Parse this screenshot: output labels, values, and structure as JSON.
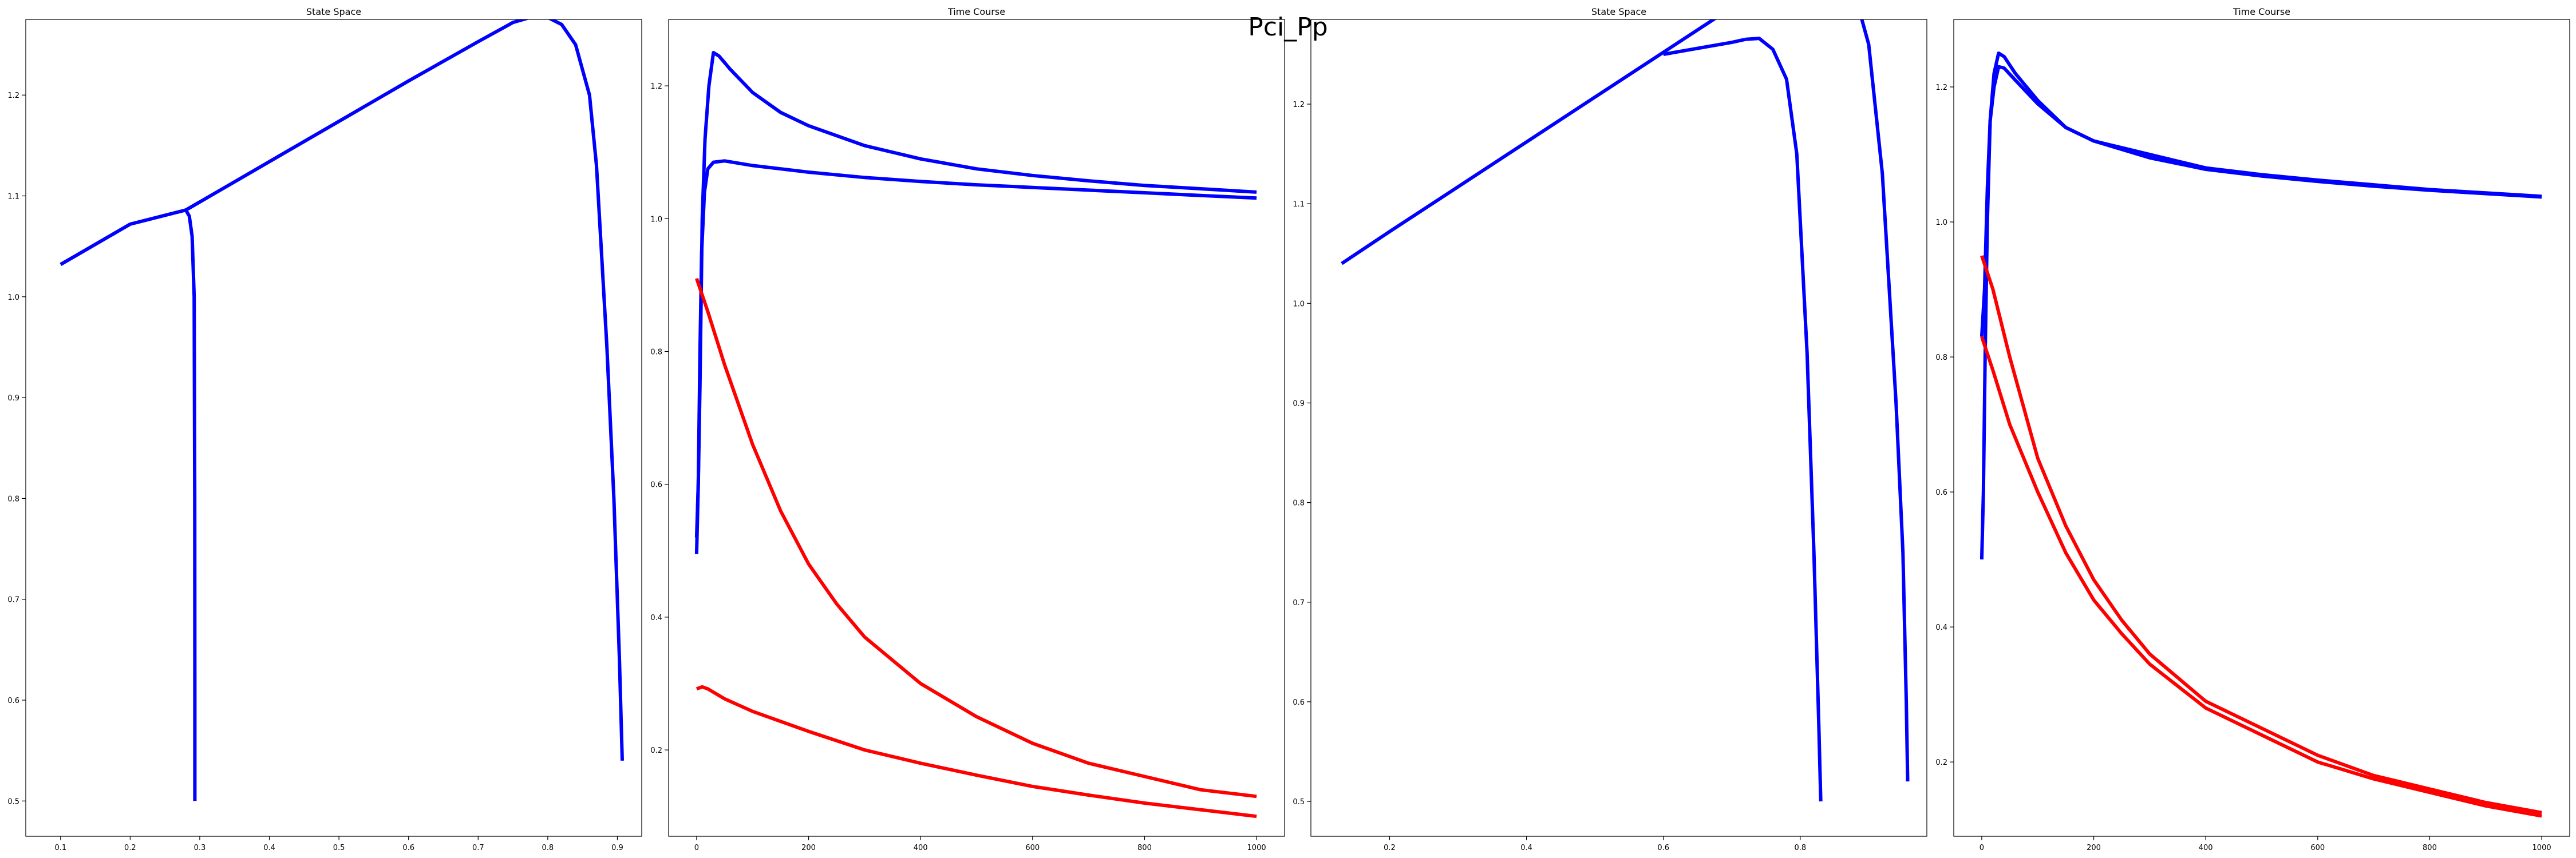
{
  "figure": {
    "suptitle": "Pci_Pp"
  },
  "colors": {
    "blue": "#0000ff",
    "red": "#ff0000",
    "axis": "#000000"
  },
  "chart_data": [
    {
      "type": "line",
      "title": "State Space",
      "xlim": [
        0.05,
        0.935
      ],
      "ylim": [
        0.465,
        1.275
      ],
      "xticks": [
        "0.1",
        "0.2",
        "0.3",
        "0.4",
        "0.5",
        "0.6",
        "0.7",
        "0.8",
        "0.9"
      ],
      "yticks": [
        "0.5",
        "0.6",
        "0.7",
        "0.8",
        "0.9",
        "1.0",
        "1.1",
        "1.2"
      ],
      "series": [
        {
          "color": "blue",
          "points": [
            [
              0.293,
              0.5
            ],
            [
              0.293,
              0.6
            ],
            [
              0.2928,
              0.8
            ],
            [
              0.292,
              1.0
            ],
            [
              0.289,
              1.06
            ],
            [
              0.285,
              1.08
            ],
            [
              0.28,
              1.086
            ],
            [
              0.3,
              1.094
            ],
            [
              0.4,
              1.134
            ],
            [
              0.5,
              1.174
            ],
            [
              0.6,
              1.214
            ],
            [
              0.7,
              1.253
            ],
            [
              0.75,
              1.272
            ],
            [
              0.78,
              1.278
            ],
            [
              0.8,
              1.277
            ],
            [
              0.82,
              1.27
            ],
            [
              0.84,
              1.25
            ],
            [
              0.86,
              1.2
            ],
            [
              0.87,
              1.13
            ],
            [
              0.885,
              0.95
            ],
            [
              0.895,
              0.8
            ],
            [
              0.903,
              0.64
            ],
            [
              0.907,
              0.54
            ]
          ]
        },
        {
          "color": "blue",
          "points": [
            [
              0.1,
              1.032
            ],
            [
              0.2,
              1.072
            ],
            [
              0.28,
              1.086
            ],
            [
              0.3,
              1.094
            ]
          ]
        }
      ]
    },
    {
      "type": "line",
      "title": "Time Course",
      "xlim": [
        -50,
        1050
      ],
      "ylim": [
        0.07,
        1.3
      ],
      "xticks": [
        "0",
        "200",
        "400",
        "600",
        "800",
        "1000"
      ],
      "yticks": [
        "0.2",
        "0.4",
        "0.6",
        "0.8",
        "1.0",
        "1.2"
      ],
      "series": [
        {
          "color": "blue",
          "points": [
            [
              0,
              0.52
            ],
            [
              3,
              0.6
            ],
            [
              6,
              0.75
            ],
            [
              10,
              1.0
            ],
            [
              15,
              1.12
            ],
            [
              22,
              1.2
            ],
            [
              30,
              1.25
            ],
            [
              40,
              1.245
            ],
            [
              60,
              1.225
            ],
            [
              100,
              1.19
            ],
            [
              150,
              1.16
            ],
            [
              200,
              1.14
            ],
            [
              300,
              1.11
            ],
            [
              400,
              1.09
            ],
            [
              500,
              1.075
            ],
            [
              600,
              1.065
            ],
            [
              700,
              1.057
            ],
            [
              800,
              1.05
            ],
            [
              900,
              1.045
            ],
            [
              1000,
              1.04
            ]
          ]
        },
        {
          "color": "blue",
          "points": [
            [
              0,
              0.495
            ],
            [
              3,
              0.6
            ],
            [
              6,
              0.8
            ],
            [
              9,
              0.95
            ],
            [
              14,
              1.04
            ],
            [
              20,
              1.075
            ],
            [
              30,
              1.085
            ],
            [
              50,
              1.087
            ],
            [
              100,
              1.08
            ],
            [
              200,
              1.07
            ],
            [
              300,
              1.062
            ],
            [
              400,
              1.056
            ],
            [
              500,
              1.051
            ],
            [
              600,
              1.047
            ],
            [
              700,
              1.043
            ],
            [
              800,
              1.039
            ],
            [
              900,
              1.035
            ],
            [
              1000,
              1.031
            ]
          ]
        },
        {
          "color": "red",
          "points": [
            [
              0,
              0.91
            ],
            [
              20,
              0.86
            ],
            [
              50,
              0.78
            ],
            [
              100,
              0.66
            ],
            [
              150,
              0.56
            ],
            [
              200,
              0.48
            ],
            [
              250,
              0.42
            ],
            [
              300,
              0.37
            ],
            [
              400,
              0.3
            ],
            [
              500,
              0.25
            ],
            [
              600,
              0.21
            ],
            [
              700,
              0.18
            ],
            [
              800,
              0.16
            ],
            [
              900,
              0.14
            ],
            [
              1000,
              0.13
            ]
          ]
        },
        {
          "color": "red",
          "points": [
            [
              0,
              0.292
            ],
            [
              10,
              0.295
            ],
            [
              20,
              0.292
            ],
            [
              50,
              0.277
            ],
            [
              100,
              0.258
            ],
            [
              200,
              0.228
            ],
            [
              300,
              0.2
            ],
            [
              400,
              0.18
            ],
            [
              500,
              0.162
            ],
            [
              600,
              0.145
            ],
            [
              700,
              0.132
            ],
            [
              800,
              0.12
            ],
            [
              900,
              0.11
            ],
            [
              1000,
              0.1
            ]
          ]
        }
      ]
    },
    {
      "type": "line",
      "title": "State Space",
      "xlim": [
        0.085,
        0.985
      ],
      "ylim": [
        0.465,
        1.285
      ],
      "xticks": [
        "0.2",
        "0.4",
        "0.6",
        "0.8"
      ],
      "yticks": [
        "0.5",
        "0.6",
        "0.7",
        "0.8",
        "0.9",
        "1.0",
        "1.1",
        "1.2"
      ],
      "series": [
        {
          "color": "blue",
          "points": [
            [
              0.13,
              1.04
            ],
            [
              0.2,
              1.072
            ],
            [
              0.3,
              1.117
            ],
            [
              0.4,
              1.162
            ],
            [
              0.5,
              1.207
            ],
            [
              0.6,
              1.252
            ],
            [
              0.7,
              1.297
            ],
            [
              0.8,
              1.329
            ],
            [
              0.84,
              1.335
            ],
            [
              0.86,
              1.331
            ],
            [
              0.88,
              1.31
            ],
            [
              0.9,
              1.26
            ],
            [
              0.92,
              1.13
            ],
            [
              0.94,
              0.9
            ],
            [
              0.95,
              0.75
            ],
            [
              0.955,
              0.6
            ],
            [
              0.957,
              0.52
            ]
          ]
        },
        {
          "color": "blue",
          "points": [
            [
              0.72,
              1.265
            ],
            [
              0.74,
              1.266
            ],
            [
              0.76,
              1.255
            ],
            [
              0.78,
              1.225
            ],
            [
              0.795,
              1.15
            ],
            [
              0.81,
              0.95
            ],
            [
              0.82,
              0.75
            ],
            [
              0.827,
              0.58
            ],
            [
              0.83,
              0.5
            ]
          ]
        },
        {
          "color": "blue",
          "points": [
            [
              0.6,
              1.25
            ],
            [
              0.7,
              1.262
            ],
            [
              0.72,
              1.265
            ]
          ]
        }
      ]
    },
    {
      "type": "line",
      "title": "Time Course",
      "xlim": [
        -50,
        1050
      ],
      "ylim": [
        0.09,
        1.3
      ],
      "xticks": [
        "0",
        "200",
        "400",
        "600",
        "800",
        "1000"
      ],
      "yticks": [
        "0.2",
        "0.4",
        "0.6",
        "0.8",
        "1.0",
        "1.2"
      ],
      "series": [
        {
          "color": "blue",
          "points": [
            [
              0,
              0.5
            ],
            [
              3,
              0.6
            ],
            [
              6,
              0.8
            ],
            [
              10,
              1.0
            ],
            [
              15,
              1.15
            ],
            [
              22,
              1.22
            ],
            [
              30,
              1.25
            ],
            [
              40,
              1.245
            ],
            [
              60,
              1.22
            ],
            [
              100,
              1.18
            ],
            [
              150,
              1.14
            ],
            [
              200,
              1.12
            ],
            [
              300,
              1.1
            ],
            [
              400,
              1.08
            ],
            [
              500,
              1.07
            ],
            [
              600,
              1.062
            ],
            [
              700,
              1.055
            ],
            [
              800,
              1.048
            ],
            [
              900,
              1.043
            ],
            [
              1000,
              1.038
            ]
          ]
        },
        {
          "color": "blue",
          "points": [
            [
              0,
              0.83
            ],
            [
              5,
              0.9
            ],
            [
              10,
              1.05
            ],
            [
              15,
              1.15
            ],
            [
              22,
              1.2
            ],
            [
              30,
              1.23
            ],
            [
              40,
              1.228
            ],
            [
              60,
              1.21
            ],
            [
              100,
              1.175
            ],
            [
              150,
              1.14
            ],
            [
              200,
              1.12
            ],
            [
              300,
              1.095
            ],
            [
              400,
              1.078
            ],
            [
              500,
              1.068
            ],
            [
              600,
              1.06
            ],
            [
              700,
              1.053
            ],
            [
              800,
              1.047
            ],
            [
              900,
              1.042
            ],
            [
              1000,
              1.037
            ]
          ]
        },
        {
          "color": "red",
          "points": [
            [
              0,
              0.95
            ],
            [
              20,
              0.9
            ],
            [
              50,
              0.8
            ],
            [
              100,
              0.65
            ],
            [
              150,
              0.55
            ],
            [
              200,
              0.47
            ],
            [
              250,
              0.41
            ],
            [
              300,
              0.36
            ],
            [
              400,
              0.29
            ],
            [
              500,
              0.25
            ],
            [
              600,
              0.21
            ],
            [
              700,
              0.18
            ],
            [
              800,
              0.16
            ],
            [
              900,
              0.14
            ],
            [
              1000,
              0.125
            ]
          ]
        },
        {
          "color": "red",
          "points": [
            [
              0,
              0.83
            ],
            [
              20,
              0.78
            ],
            [
              50,
              0.7
            ],
            [
              100,
              0.6
            ],
            [
              150,
              0.51
            ],
            [
              200,
              0.44
            ],
            [
              250,
              0.39
            ],
            [
              300,
              0.345
            ],
            [
              400,
              0.28
            ],
            [
              500,
              0.24
            ],
            [
              600,
              0.2
            ],
            [
              700,
              0.175
            ],
            [
              800,
              0.155
            ],
            [
              900,
              0.135
            ],
            [
              1000,
              0.12
            ]
          ]
        }
      ]
    }
  ]
}
